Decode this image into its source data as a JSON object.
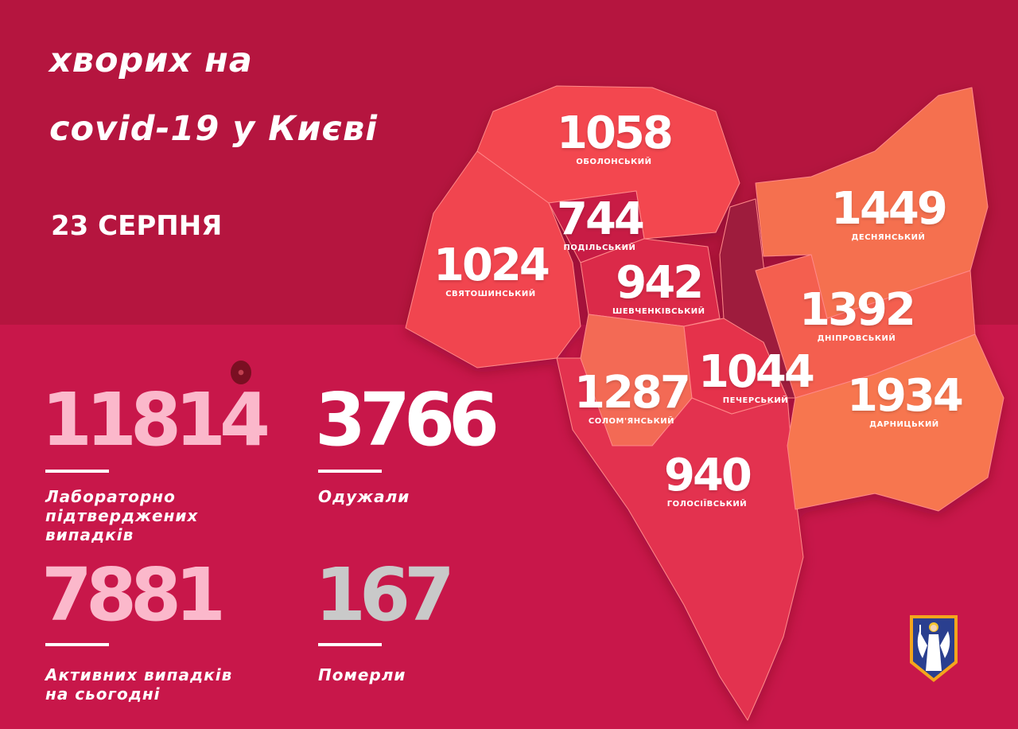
{
  "header": {
    "title_line1": "хворих на",
    "title_line2": "covid-19 у Києві",
    "date": "23 СЕРПНЯ"
  },
  "districts": [
    {
      "name": "ОБОЛОНСЬКИЙ",
      "count": "1058"
    },
    {
      "name": "ПОДІЛЬСЬКИЙ",
      "count": "744"
    },
    {
      "name": "СВЯТОШИНСЬКИЙ",
      "count": "1024"
    },
    {
      "name": "ШЕВЧЕНКІВСЬКИЙ",
      "count": "942"
    },
    {
      "name": "ДЕСНЯНСЬКИЙ",
      "count": "1449"
    },
    {
      "name": "ДНІПРОВСЬКИЙ",
      "count": "1392"
    },
    {
      "name": "СОЛОМ'ЯНСЬКИЙ",
      "count": "1287"
    },
    {
      "name": "ПЕЧЕРСЬКИЙ",
      "count": "1044"
    },
    {
      "name": "ДАРНИЦЬКИЙ",
      "count": "1934"
    },
    {
      "name": "ГОЛОСІЇВСЬКИЙ",
      "count": "940"
    }
  ],
  "stats": {
    "confirmed": {
      "value": "11814",
      "label_lines": [
        "Лабораторно",
        "підтверджених",
        "випадків"
      ]
    },
    "recovered": {
      "value": "3766",
      "label": "Одужали"
    },
    "active": {
      "value": "7881",
      "label_lines": [
        "Активних випадків",
        "на сьогодні"
      ]
    },
    "deaths": {
      "value": "167",
      "label": "Померли"
    }
  },
  "colors": {
    "background": "#b5153f",
    "panel": "#c8174a",
    "confirmed": "#fbb8cb",
    "recovered": "#ffffff",
    "deaths": "#c9c9c9"
  },
  "icons": {
    "virus": "virus-icon",
    "coat_of_arms": "kyiv-coat-of-arms-icon"
  }
}
